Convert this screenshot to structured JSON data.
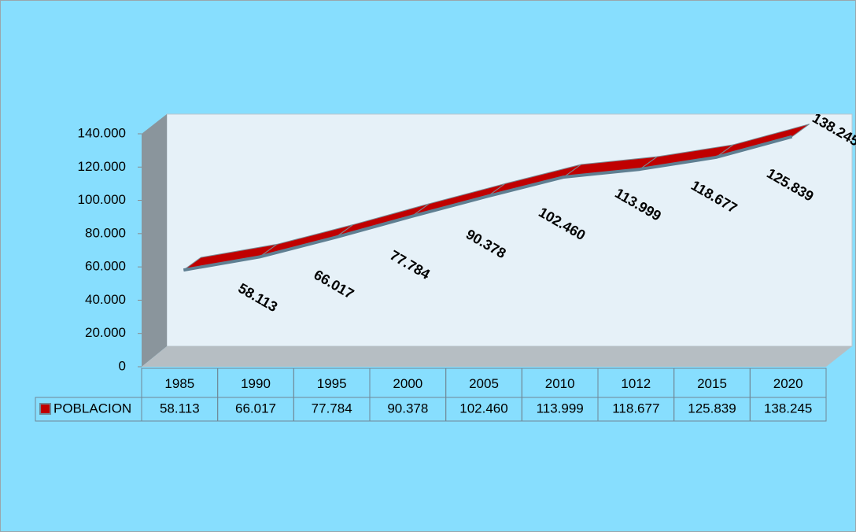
{
  "chart_data": {
    "type": "line3d",
    "categories": [
      "1985",
      "1990",
      "1995",
      "2000",
      "2005",
      "2010",
      "1012",
      "2015",
      "2020"
    ],
    "series": [
      {
        "name": "POBLACION",
        "color": "#c00000",
        "values": [
          58113,
          66017,
          77784,
          90378,
          102460,
          113999,
          118677,
          125839,
          138245
        ],
        "value_labels": [
          "58.113",
          "66.017",
          "77.784",
          "90.378",
          "102.460",
          "113.999",
          "118.677",
          "125.839",
          "138.245"
        ]
      }
    ],
    "ylim": [
      0,
      140000
    ],
    "yticks": [
      0,
      {
        "value": 20000,
        "label": "20.000"
      },
      {
        "value": 40000,
        "label": "40.000"
      },
      {
        "value": 60000,
        "label": "60.000"
      },
      {
        "value": 80000,
        "label": "80.000"
      },
      {
        "value": 100000,
        "label": "100.000"
      },
      {
        "value": 120000,
        "label": "120.000"
      },
      {
        "value": 140000,
        "label": "140.000"
      }
    ],
    "data_table": true
  }
}
